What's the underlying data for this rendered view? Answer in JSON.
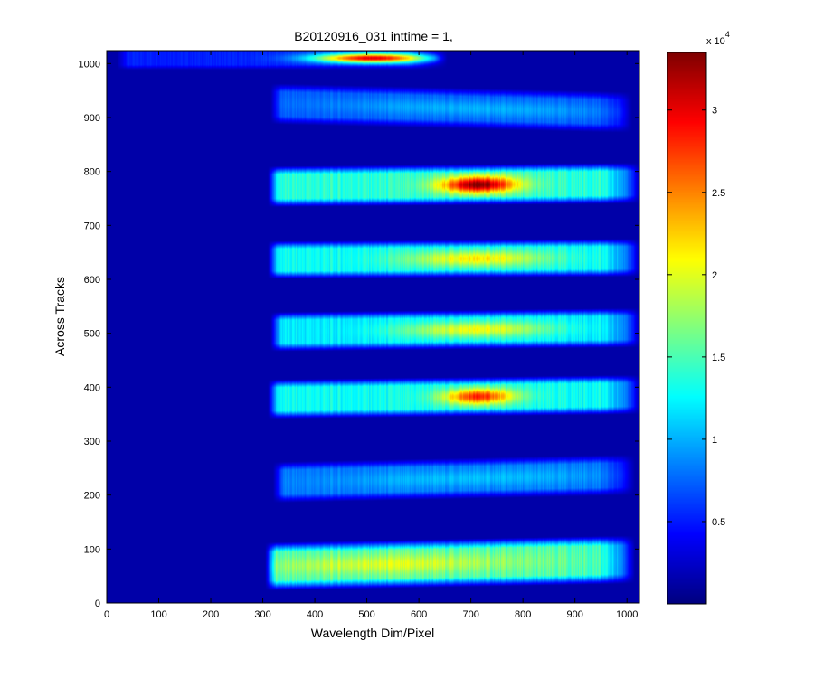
{
  "chart_data": {
    "type": "heatmap",
    "title": "B20120916_031 inttime = 1,",
    "xlabel": "Wavelength Dim/Pixel",
    "ylabel": "Across Tracks",
    "xlim": [
      0,
      1024
    ],
    "ylim": [
      0,
      1024
    ],
    "x_ticks": [
      0,
      100,
      200,
      300,
      400,
      500,
      600,
      700,
      800,
      900,
      1000
    ],
    "y_ticks": [
      0,
      100,
      200,
      300,
      400,
      500,
      600,
      700,
      800,
      900,
      1000
    ],
    "colormap": "jet",
    "background_color": "#00008f",
    "grid": false,
    "colorbar": {
      "range": [
        0,
        33500
      ],
      "ticks": [
        0.5,
        1,
        1.5,
        2,
        2.5,
        3
      ],
      "tick_labels": [
        "0.5",
        "1",
        "1.5",
        "2",
        "2.5",
        "3"
      ],
      "multiplier_base": "x 10",
      "multiplier_exponent": "4"
    },
    "bands": [
      {
        "name": "track-1000",
        "x_start": 40,
        "x_end": 630,
        "y_center_left": 1010,
        "y_center_right": 1010,
        "y_half_width": 16,
        "peak_value": 30000,
        "peak_x": 510,
        "peak_sigma": 110,
        "base_value": 4000,
        "edge_value": 0
      },
      {
        "name": "track-900",
        "x_start": 335,
        "x_end": 985,
        "y_center_left": 925,
        "y_center_right": 910,
        "y_half_width": 28,
        "peak_value": 9000,
        "peak_x": 700,
        "peak_sigma": 280,
        "base_value": 6000,
        "edge_value": 3000
      },
      {
        "name": "track-780",
        "x_start": 330,
        "x_end": 1000,
        "y_center_left": 772,
        "y_center_right": 778,
        "y_half_width": 28,
        "peak_value": 33500,
        "peak_x": 715,
        "peak_sigma": 75,
        "base_value": 13000,
        "edge_value": 6000
      },
      {
        "name": "track-640",
        "x_start": 330,
        "x_end": 1000,
        "y_center_left": 636,
        "y_center_right": 640,
        "y_half_width": 26,
        "peak_value": 21000,
        "peak_x": 710,
        "peak_sigma": 130,
        "base_value": 12000,
        "edge_value": 6000
      },
      {
        "name": "track-510",
        "x_start": 335,
        "x_end": 1000,
        "y_center_left": 503,
        "y_center_right": 510,
        "y_half_width": 27,
        "peak_value": 20000,
        "peak_x": 710,
        "peak_sigma": 140,
        "base_value": 11000,
        "edge_value": 6000
      },
      {
        "name": "track-380",
        "x_start": 330,
        "x_end": 1000,
        "y_center_left": 378,
        "y_center_right": 386,
        "y_half_width": 27,
        "peak_value": 28000,
        "peak_x": 715,
        "peak_sigma": 70,
        "base_value": 12000,
        "edge_value": 6000
      },
      {
        "name": "track-230",
        "x_start": 340,
        "x_end": 990,
        "y_center_left": 224,
        "y_center_right": 237,
        "y_half_width": 28,
        "peak_value": 9500,
        "peak_x": 700,
        "peak_sigma": 250,
        "base_value": 7000,
        "edge_value": 3000
      },
      {
        "name": "track-75",
        "x_start": 325,
        "x_end": 990,
        "y_center_left": 68,
        "y_center_right": 80,
        "y_half_width": 33,
        "peak_value": 19000,
        "peak_x": 550,
        "peak_sigma": 250,
        "base_value": 14000,
        "edge_value": 6000
      }
    ]
  }
}
